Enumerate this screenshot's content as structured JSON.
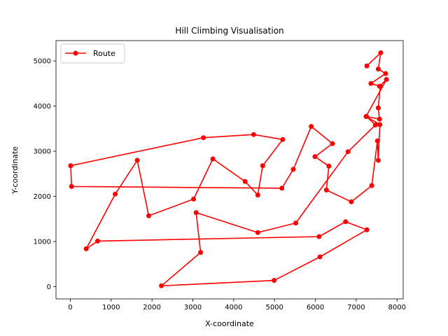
{
  "chart_data": {
    "type": "line",
    "title": "Hill Climbing Visualisation",
    "xlabel": "X-coordinate",
    "ylabel": "Y-coordinate",
    "xlim": [
      -350,
      8150
    ],
    "ylim": [
      -270,
      5450
    ],
    "xticks": [
      0,
      1000,
      2000,
      3000,
      4000,
      5000,
      6000,
      7000,
      8000
    ],
    "yticks": [
      0,
      1000,
      2000,
      3000,
      4000,
      5000
    ],
    "grid": false,
    "legend_position": "top-left",
    "series": [
      {
        "name": "Route",
        "color": "#ff0000",
        "marker": "circle",
        "x": [
          7260,
          7600,
          7540,
          7720,
          7360,
          7590,
          7540,
          7570,
          7250,
          7470,
          6800,
          5520,
          4590,
          3080,
          3190,
          2230,
          4990,
          6110,
          7260,
          6740,
          6090,
          670,
          390,
          1100,
          1640,
          1920,
          3020,
          3490,
          4280,
          4590,
          4710,
          5200,
          4490,
          3260,
          10,
          30,
          5180,
          5460,
          5900,
          6420,
          5990,
          6330,
          6270,
          6880,
          7380,
          7520,
          7540,
          7580,
          7240,
          7740,
          7570
        ],
        "y": [
          4890,
          5180,
          4820,
          4720,
          4500,
          4440,
          3960,
          3710,
          3770,
          3580,
          2990,
          1410,
          1200,
          1640,
          760,
          20,
          140,
          660,
          1260,
          1440,
          1110,
          1010,
          840,
          2050,
          2800,
          1570,
          1940,
          2830,
          2330,
          2030,
          2680,
          3260,
          3370,
          3300,
          2680,
          2220,
          2180,
          2600,
          3550,
          3170,
          2880,
          2670,
          2140,
          1880,
          2240,
          3230,
          2800,
          3590,
          3770,
          4590,
          4440
        ]
      }
    ]
  }
}
